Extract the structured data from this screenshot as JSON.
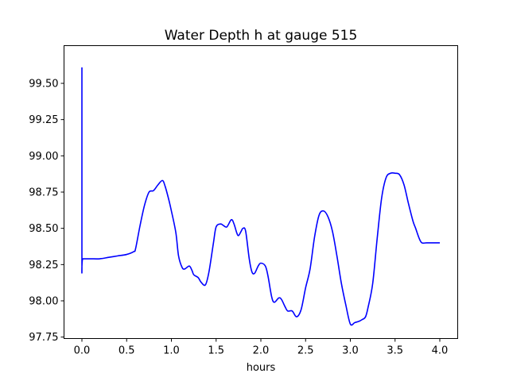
{
  "chart_data": {
    "type": "line",
    "title": "Water Depth h at gauge 515",
    "xlabel": "hours",
    "ylabel": "",
    "xlim": [
      -0.2,
      4.2
    ],
    "ylim": [
      97.74,
      99.76
    ],
    "xticks": [
      0.0,
      0.5,
      1.0,
      1.5,
      2.0,
      2.5,
      3.0,
      3.5,
      4.0
    ],
    "xtick_labels": [
      "0.0",
      "0.5",
      "1.0",
      "1.5",
      "2.0",
      "2.5",
      "3.0",
      "3.5",
      "4.0"
    ],
    "yticks": [
      97.75,
      98.0,
      98.25,
      98.5,
      98.75,
      99.0,
      99.25,
      99.5
    ],
    "ytick_labels": [
      "97.75",
      "98.00",
      "98.25",
      "98.50",
      "98.75",
      "99.00",
      "99.25",
      "99.50"
    ],
    "grid": false,
    "series": [
      {
        "color": "#0000ff",
        "x": [
          0.0,
          0.0,
          0.01,
          0.1,
          0.2,
          0.3,
          0.4,
          0.5,
          0.58,
          0.6,
          0.65,
          0.7,
          0.75,
          0.8,
          0.85,
          0.9,
          0.93,
          0.97,
          1.0,
          1.05,
          1.08,
          1.12,
          1.15,
          1.2,
          1.23,
          1.25,
          1.3,
          1.33,
          1.38,
          1.42,
          1.47,
          1.5,
          1.55,
          1.58,
          1.62,
          1.67,
          1.7,
          1.73,
          1.75,
          1.78,
          1.8,
          1.83,
          1.87,
          1.9,
          1.93,
          1.97,
          2.0,
          2.05,
          2.08,
          2.12,
          2.15,
          2.2,
          2.23,
          2.27,
          2.3,
          2.35,
          2.4,
          2.45,
          2.5,
          2.55,
          2.6,
          2.65,
          2.7,
          2.75,
          2.8,
          2.85,
          2.9,
          2.95,
          3.0,
          3.05,
          3.1,
          3.13,
          3.17,
          3.2,
          3.25,
          3.3,
          3.35,
          3.4,
          3.45,
          3.5,
          3.55,
          3.6,
          3.65,
          3.7,
          3.73,
          3.77,
          3.8,
          3.85,
          3.9,
          3.95,
          4.0
        ],
        "y": [
          99.61,
          98.29,
          98.29,
          98.29,
          98.29,
          98.3,
          98.31,
          98.32,
          98.34,
          98.36,
          98.52,
          98.66,
          98.75,
          98.76,
          98.8,
          98.83,
          98.79,
          98.7,
          98.62,
          98.47,
          98.31,
          98.23,
          98.22,
          98.24,
          98.21,
          98.18,
          98.16,
          98.13,
          98.11,
          98.2,
          98.4,
          98.51,
          98.53,
          98.52,
          98.51,
          98.56,
          98.53,
          98.47,
          98.45,
          98.48,
          98.5,
          98.48,
          98.29,
          98.2,
          98.19,
          98.24,
          98.26,
          98.24,
          98.17,
          98.03,
          97.99,
          98.02,
          98.01,
          97.96,
          97.93,
          97.93,
          97.89,
          97.94,
          98.09,
          98.22,
          98.44,
          98.59,
          98.62,
          98.58,
          98.48,
          98.31,
          98.12,
          97.97,
          97.84,
          97.85,
          97.86,
          97.87,
          97.89,
          97.96,
          98.12,
          98.43,
          98.71,
          98.85,
          98.88,
          98.88,
          98.87,
          98.8,
          98.67,
          98.55,
          98.5,
          98.43,
          98.4,
          98.4,
          98.4,
          98.4,
          98.4
        ]
      }
    ]
  }
}
